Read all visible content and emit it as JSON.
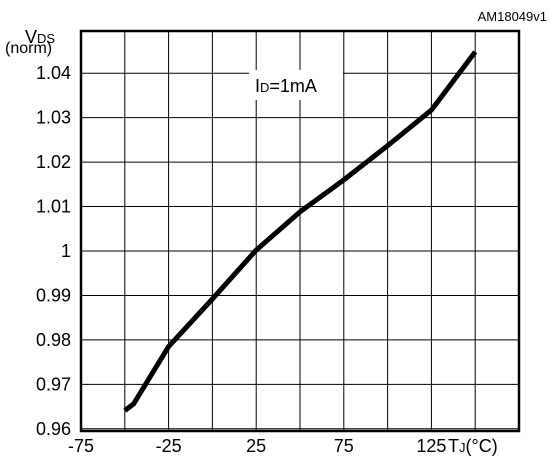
{
  "figure_id": "AM18049v1",
  "chart_data": {
    "type": "line",
    "ylabel_main": "V",
    "ylabel_sub": "DS",
    "ylabel_unit": "(norm)",
    "xlabel_main": "T",
    "xlabel_sub": "J",
    "xlabel_unit": "(°C)",
    "annotation_main": "I",
    "annotation_sub": "D",
    "annotation_rest": "=1mA",
    "xlim": [
      -75,
      175
    ],
    "ylim": [
      0.9595,
      1.0495
    ],
    "x_ticks": [
      "-75",
      "-25",
      "25",
      "75",
      "125"
    ],
    "y_ticks": [
      "0.96",
      "0.97",
      "0.98",
      "0.99",
      "1",
      "1.01",
      "1.02",
      "1.03",
      "1.04"
    ],
    "grid": true,
    "series": [
      {
        "x": [
          -50,
          -45,
          -25,
          0,
          25,
          50,
          75,
          100,
          125,
          150
        ],
        "y": [
          0.9641,
          0.9656,
          0.9785,
          0.9892,
          1.0002,
          1.0088,
          1.016,
          1.0237,
          1.0317,
          1.0448
        ]
      }
    ]
  }
}
